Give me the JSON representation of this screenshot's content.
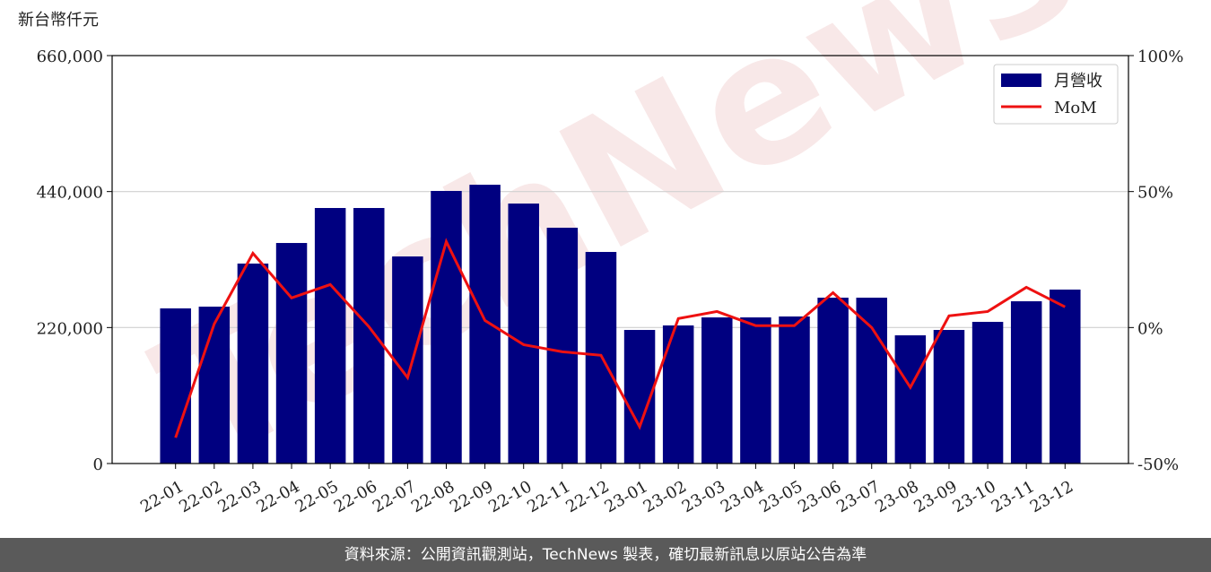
{
  "chart_data": {
    "type": "bar",
    "unit_label": "新台幣仟元",
    "watermark": "TechNews",
    "categories": [
      "22-01",
      "22-02",
      "22-03",
      "22-04",
      "22-05",
      "22-06",
      "22-07",
      "22-08",
      "22-09",
      "22-10",
      "22-11",
      "22-12",
      "23-01",
      "23-02",
      "23-03",
      "23-04",
      "23-05",
      "23-06",
      "23-07",
      "23-08",
      "23-09",
      "23-10",
      "23-11",
      "23-12"
    ],
    "series": [
      {
        "name": "月營收",
        "type": "bar",
        "color": "#000080",
        "values": [
          251000,
          253800,
          323500,
          356800,
          413400,
          413400,
          335000,
          441000,
          451000,
          420600,
          381500,
          342300,
          216100,
          223400,
          236400,
          236400,
          237900,
          268300,
          268300,
          207400,
          216100,
          229200,
          262500,
          281400
        ]
      },
      {
        "name": "MoM",
        "type": "line",
        "axis": "y2",
        "color": "#ee1111",
        "values": [
          -40.5,
          1.3,
          27.3,
          10.9,
          15.8,
          0.3,
          -18.4,
          31.6,
          2.6,
          -6.3,
          -8.9,
          -10.2,
          -36.5,
          3.3,
          5.9,
          0.7,
          0.7,
          12.8,
          0,
          -22,
          4.3,
          5.9,
          14.8,
          7.6
        ]
      }
    ],
    "ylim": [
      0,
      660000
    ],
    "yticks": [
      0,
      {
        "value": 220000,
        "label": "220,000"
      },
      {
        "value": 440000,
        "label": "440,000"
      },
      {
        "value": 660000,
        "label": "660,000"
      }
    ],
    "y2lim": [
      -50,
      100
    ],
    "y2ticks": [
      {
        "value": -50,
        "label": "-50%"
      },
      {
        "value": 0,
        "label": "0%"
      },
      {
        "value": 50,
        "label": "50%"
      },
      {
        "value": 100,
        "label": "100%"
      }
    ],
    "grid": true,
    "legend": "upper right"
  },
  "footer": "資料來源：公開資訊觀測站，TechNews 製表，確切最新訊息以原站公告為準"
}
